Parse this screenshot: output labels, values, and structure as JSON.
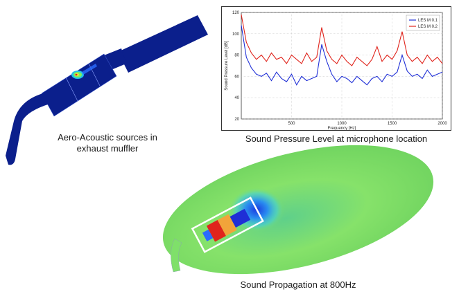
{
  "captions": {
    "muffler_line1": "Aero-Acoustic sources in",
    "muffler_line2": "exhaust muffler",
    "spl": "Sound Pressure Level at microphone location",
    "propagation": "Sound Propagation at 800Hz"
  },
  "colors": {
    "muffler_body": "#0b1f8c",
    "series_blue": "#1f2fd6",
    "series_red": "#e0241c",
    "field_green": "#7fe06a"
  },
  "chart_data": {
    "type": "line",
    "title": "",
    "xlabel": "Frequency [Hz]",
    "ylabel": "Sound Pressure Level [dB]",
    "xlim": [
      0,
      2000
    ],
    "ylim": [
      20,
      120
    ],
    "xticks": [
      500,
      1000,
      1500,
      2000
    ],
    "yticks": [
      20,
      40,
      60,
      80,
      100,
      120
    ],
    "grid": true,
    "legend_position": "top-right",
    "x": [
      0,
      50,
      100,
      150,
      200,
      250,
      300,
      350,
      400,
      450,
      500,
      550,
      600,
      650,
      700,
      750,
      800,
      850,
      900,
      950,
      1000,
      1050,
      1100,
      1150,
      1200,
      1250,
      1300,
      1350,
      1400,
      1450,
      1500,
      1550,
      1600,
      1650,
      1700,
      1750,
      1800,
      1850,
      1900,
      1950,
      2000
    ],
    "series": [
      {
        "name": "LES M 0.1",
        "color": "#1f2fd6",
        "values": [
          108,
          78,
          68,
          62,
          60,
          63,
          56,
          64,
          58,
          55,
          62,
          52,
          60,
          56,
          58,
          60,
          90,
          74,
          62,
          55,
          60,
          58,
          54,
          60,
          56,
          52,
          58,
          60,
          55,
          62,
          60,
          64,
          80,
          65,
          60,
          62,
          58,
          66,
          60,
          62,
          64
        ]
      },
      {
        "name": "LES M 0.2",
        "color": "#e0241c",
        "values": [
          118,
          92,
          82,
          76,
          80,
          74,
          82,
          76,
          78,
          72,
          80,
          76,
          72,
          82,
          74,
          78,
          106,
          84,
          76,
          72,
          80,
          74,
          70,
          78,
          74,
          70,
          76,
          88,
          74,
          80,
          76,
          84,
          102,
          80,
          74,
          78,
          72,
          80,
          74,
          78,
          72
        ]
      }
    ]
  }
}
